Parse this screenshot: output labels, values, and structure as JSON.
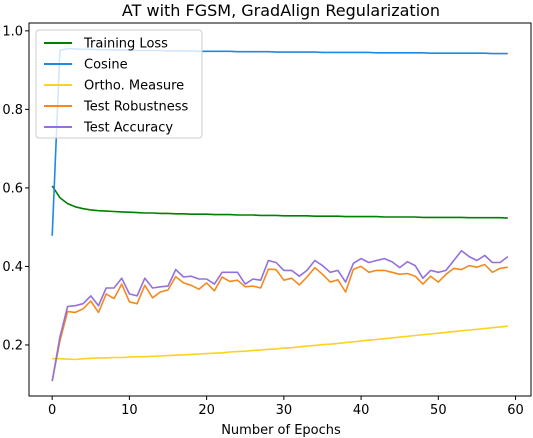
{
  "chart_data": {
    "type": "line",
    "title": "AT with FGSM, GradAlign Regularization",
    "xlabel": "Number of Epochs",
    "ylabel": "",
    "xlim": [
      -3,
      62
    ],
    "ylim": [
      0.07,
      1.02
    ],
    "xticks": [
      0,
      10,
      20,
      30,
      40,
      50,
      60
    ],
    "yticks": [
      0.2,
      0.4,
      0.6,
      0.8,
      1.0
    ],
    "xtick_labels": [
      "0",
      "10",
      "20",
      "30",
      "40",
      "50",
      "60"
    ],
    "ytick_labels": [
      "0.2",
      "0.4",
      "0.6",
      "0.8",
      "1.0"
    ],
    "grid": false,
    "legend_position": "top-left",
    "x": [
      0,
      1,
      2,
      3,
      4,
      5,
      6,
      7,
      8,
      9,
      10,
      11,
      12,
      13,
      14,
      15,
      16,
      17,
      18,
      19,
      20,
      21,
      22,
      23,
      24,
      25,
      26,
      27,
      28,
      29,
      30,
      31,
      32,
      33,
      34,
      35,
      36,
      37,
      38,
      39,
      40,
      41,
      42,
      43,
      44,
      45,
      46,
      47,
      48,
      49,
      50,
      51,
      52,
      53,
      54,
      55,
      56,
      57,
      58,
      59
    ],
    "series": [
      {
        "name": "Training Loss",
        "color": "#008000",
        "values": [
          0.605,
          0.575,
          0.56,
          0.552,
          0.547,
          0.544,
          0.542,
          0.541,
          0.54,
          0.539,
          0.538,
          0.537,
          0.536,
          0.536,
          0.535,
          0.535,
          0.534,
          0.534,
          0.533,
          0.533,
          0.533,
          0.532,
          0.532,
          0.532,
          0.531,
          0.531,
          0.531,
          0.53,
          0.53,
          0.53,
          0.529,
          0.529,
          0.529,
          0.529,
          0.528,
          0.528,
          0.528,
          0.528,
          0.527,
          0.527,
          0.527,
          0.527,
          0.527,
          0.526,
          0.526,
          0.526,
          0.526,
          0.526,
          0.525,
          0.525,
          0.525,
          0.525,
          0.525,
          0.525,
          0.524,
          0.524,
          0.524,
          0.524,
          0.524,
          0.523
        ]
      },
      {
        "name": "Cosine",
        "color": "#1e88e5",
        "values": [
          0.478,
          0.95,
          0.955,
          0.954,
          0.953,
          0.953,
          0.952,
          0.952,
          0.951,
          0.951,
          0.951,
          0.95,
          0.95,
          0.95,
          0.95,
          0.949,
          0.949,
          0.949,
          0.949,
          0.948,
          0.948,
          0.948,
          0.948,
          0.948,
          0.947,
          0.947,
          0.947,
          0.947,
          0.947,
          0.946,
          0.946,
          0.946,
          0.946,
          0.946,
          0.946,
          0.945,
          0.945,
          0.945,
          0.945,
          0.945,
          0.945,
          0.945,
          0.944,
          0.944,
          0.944,
          0.944,
          0.944,
          0.944,
          0.944,
          0.943,
          0.943,
          0.943,
          0.943,
          0.943,
          0.943,
          0.943,
          0.943,
          0.942,
          0.942,
          0.942
        ]
      },
      {
        "name": "Ortho. Measure",
        "color": "#ffd21f",
        "values": [
          0.165,
          0.165,
          0.164,
          0.163,
          0.165,
          0.166,
          0.167,
          0.167,
          0.168,
          0.168,
          0.169,
          0.17,
          0.17,
          0.171,
          0.172,
          0.173,
          0.174,
          0.175,
          0.176,
          0.177,
          0.178,
          0.179,
          0.18,
          0.182,
          0.183,
          0.184,
          0.186,
          0.187,
          0.189,
          0.19,
          0.192,
          0.193,
          0.195,
          0.197,
          0.199,
          0.201,
          0.202,
          0.204,
          0.206,
          0.208,
          0.21,
          0.212,
          0.214,
          0.216,
          0.218,
          0.22,
          0.222,
          0.224,
          0.226,
          0.228,
          0.23,
          0.232,
          0.234,
          0.236,
          0.238,
          0.24,
          0.242,
          0.244,
          0.246,
          0.248
        ]
      },
      {
        "name": "Test Robustness",
        "color": "#f5891f",
        "values": [
          0.108,
          0.21,
          0.285,
          0.283,
          0.292,
          0.312,
          0.283,
          0.33,
          0.318,
          0.355,
          0.31,
          0.305,
          0.352,
          0.32,
          0.335,
          0.34,
          0.374,
          0.358,
          0.352,
          0.342,
          0.358,
          0.338,
          0.373,
          0.362,
          0.365,
          0.348,
          0.35,
          0.345,
          0.393,
          0.392,
          0.365,
          0.37,
          0.353,
          0.373,
          0.397,
          0.38,
          0.36,
          0.366,
          0.335,
          0.393,
          0.4,
          0.385,
          0.39,
          0.39,
          0.385,
          0.38,
          0.382,
          0.375,
          0.355,
          0.375,
          0.36,
          0.38,
          0.395,
          0.392,
          0.402,
          0.398,
          0.405,
          0.385,
          0.395,
          0.398
        ]
      },
      {
        "name": "Test Accuracy",
        "color": "#9370db",
        "values": [
          0.108,
          0.22,
          0.298,
          0.3,
          0.305,
          0.325,
          0.3,
          0.345,
          0.345,
          0.37,
          0.33,
          0.325,
          0.37,
          0.345,
          0.348,
          0.35,
          0.392,
          0.373,
          0.375,
          0.368,
          0.368,
          0.355,
          0.385,
          0.385,
          0.385,
          0.355,
          0.368,
          0.365,
          0.415,
          0.41,
          0.39,
          0.39,
          0.375,
          0.39,
          0.415,
          0.402,
          0.385,
          0.39,
          0.36,
          0.408,
          0.42,
          0.41,
          0.415,
          0.42,
          0.412,
          0.397,
          0.412,
          0.402,
          0.37,
          0.39,
          0.385,
          0.39,
          0.415,
          0.44,
          0.425,
          0.415,
          0.428,
          0.41,
          0.41,
          0.425
        ]
      }
    ]
  }
}
